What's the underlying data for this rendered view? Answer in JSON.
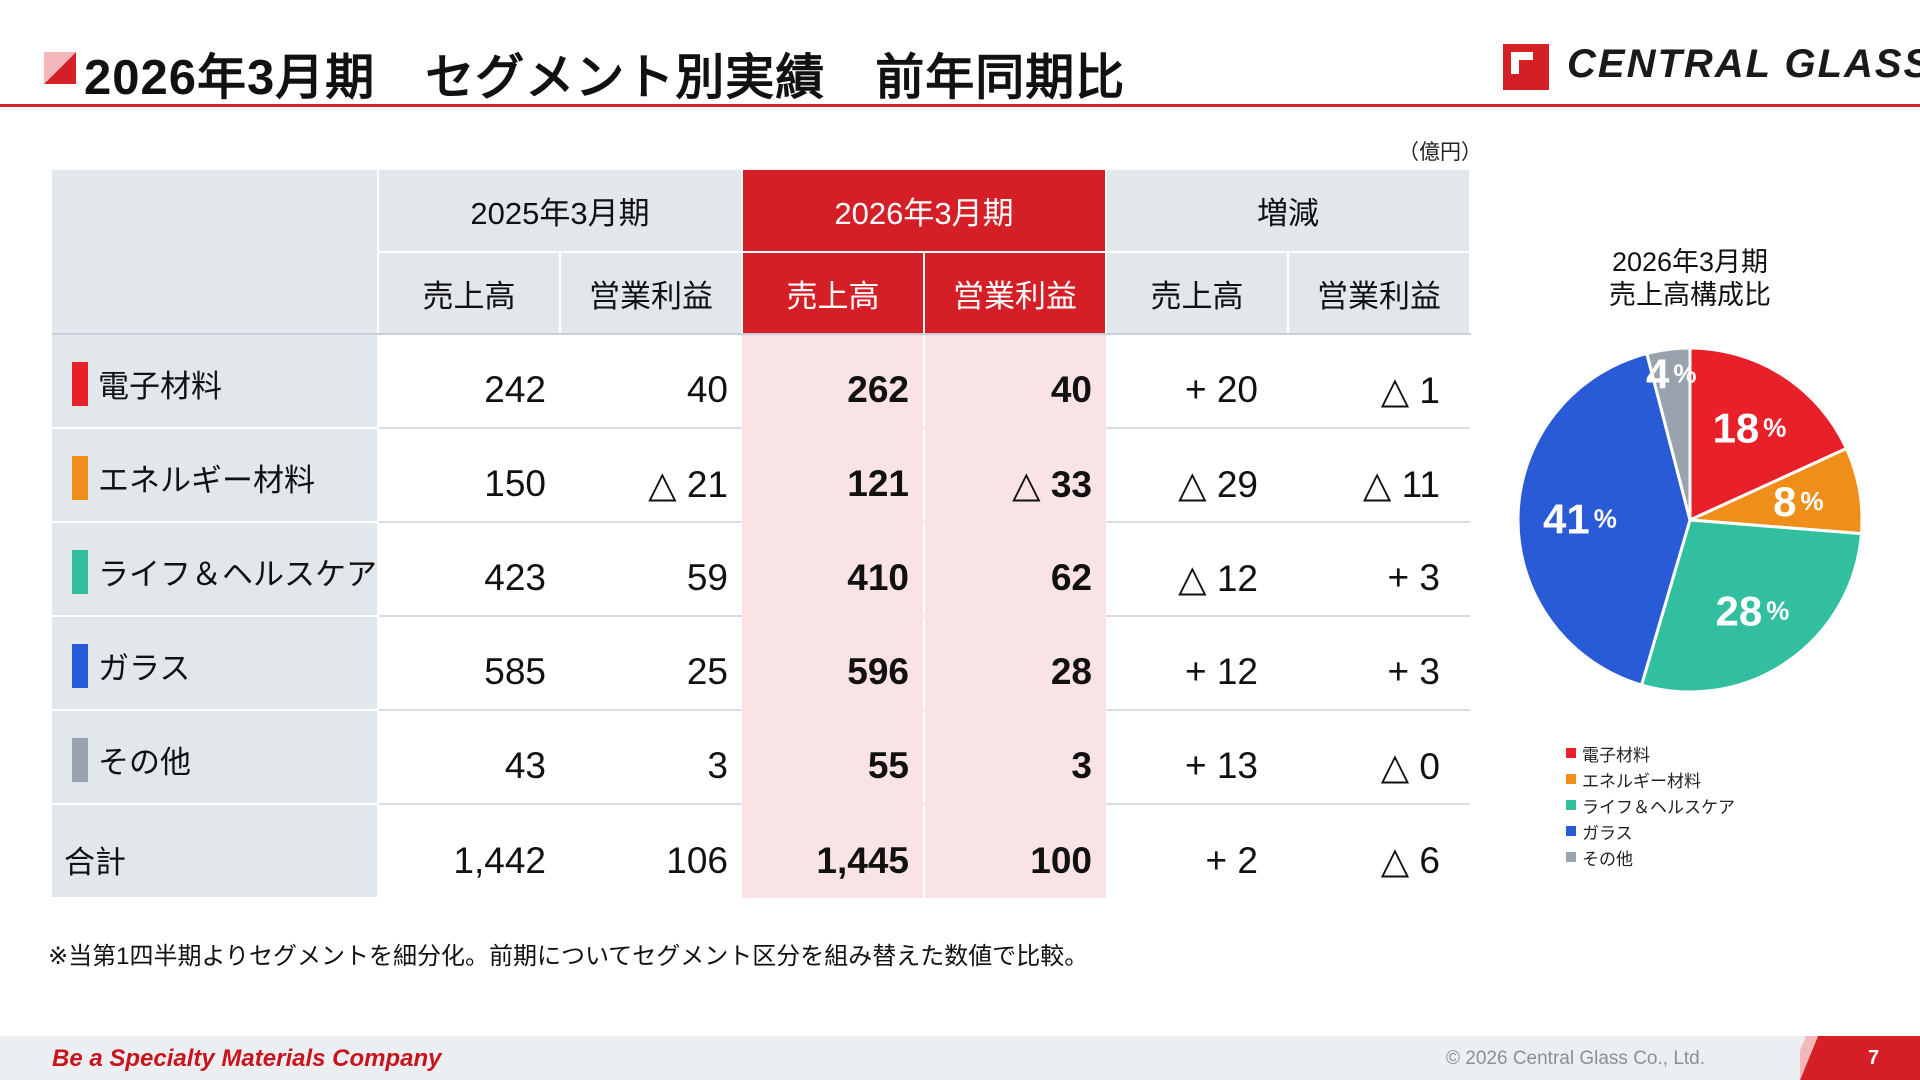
{
  "header": {
    "title": "2026年3月期　セグメント別実績　前年同期比",
    "logo_text": "CENTRAL  GLASS",
    "colors": {
      "accent_red": "#d41f26"
    }
  },
  "unit_note": "（億円）",
  "table": {
    "period_headers": [
      "2025年3月期",
      "2026年3月期",
      "増減"
    ],
    "sub_headers": [
      "売上高",
      "営業利益",
      "売上高",
      "営業利益",
      "売上高",
      "営業利益"
    ],
    "rows": [
      {
        "segment": "電子材料",
        "color": "#e8202a",
        "values": [
          "242",
          "40",
          "262",
          "40",
          "+ 20",
          "△ 1"
        ]
      },
      {
        "segment": "エネルギー材料",
        "color": "#ef8f1a",
        "values": [
          "150",
          "△ 21",
          "121",
          "△ 33",
          "△ 29",
          "△ 11"
        ]
      },
      {
        "segment": "ライフ＆ヘルスケア",
        "color": "#31bfa0",
        "values": [
          "423",
          "59",
          "410",
          "62",
          "△ 12",
          "+ 3"
        ]
      },
      {
        "segment": "ガラス",
        "color": "#2a5bd7",
        "values": [
          "585",
          "25",
          "596",
          "28",
          "+ 12",
          "+ 3"
        ]
      },
      {
        "segment": "その他",
        "color": "#9aa3ad",
        "values": [
          "43",
          "3",
          "55",
          "3",
          "+ 13",
          "△ 0"
        ]
      },
      {
        "segment": "合計",
        "values": [
          "1,442",
          "106",
          "1,445",
          "100",
          "+ 2",
          "△ 6"
        ]
      }
    ],
    "footnote": "※当第1四半期よりセグメントを細分化。前期についてセグメント区分を組み替えた数値で比較。"
  },
  "chart_data": {
    "type": "pie",
    "title": "2026年3月期\n売上高構成比",
    "title_lines": [
      "2026年3月期",
      "売上高構成比"
    ],
    "categories": [
      "電子材料",
      "エネルギー材料",
      "ライフ＆ヘルスケア",
      "ガラス",
      "その他"
    ],
    "values": [
      18,
      8,
      28,
      41,
      4
    ],
    "labels": [
      "18",
      "8",
      "28",
      "41",
      "4"
    ],
    "unit": "%",
    "colors": [
      "#e8202a",
      "#ef8f1a",
      "#31bfa0",
      "#2a5bd7",
      "#9aa3ad"
    ],
    "legend_position": "bottom"
  },
  "footer": {
    "slogan": "Be a Specialty Materials Company",
    "copyright": "© 2026 Central Glass Co., Ltd.",
    "page_number": "7"
  }
}
